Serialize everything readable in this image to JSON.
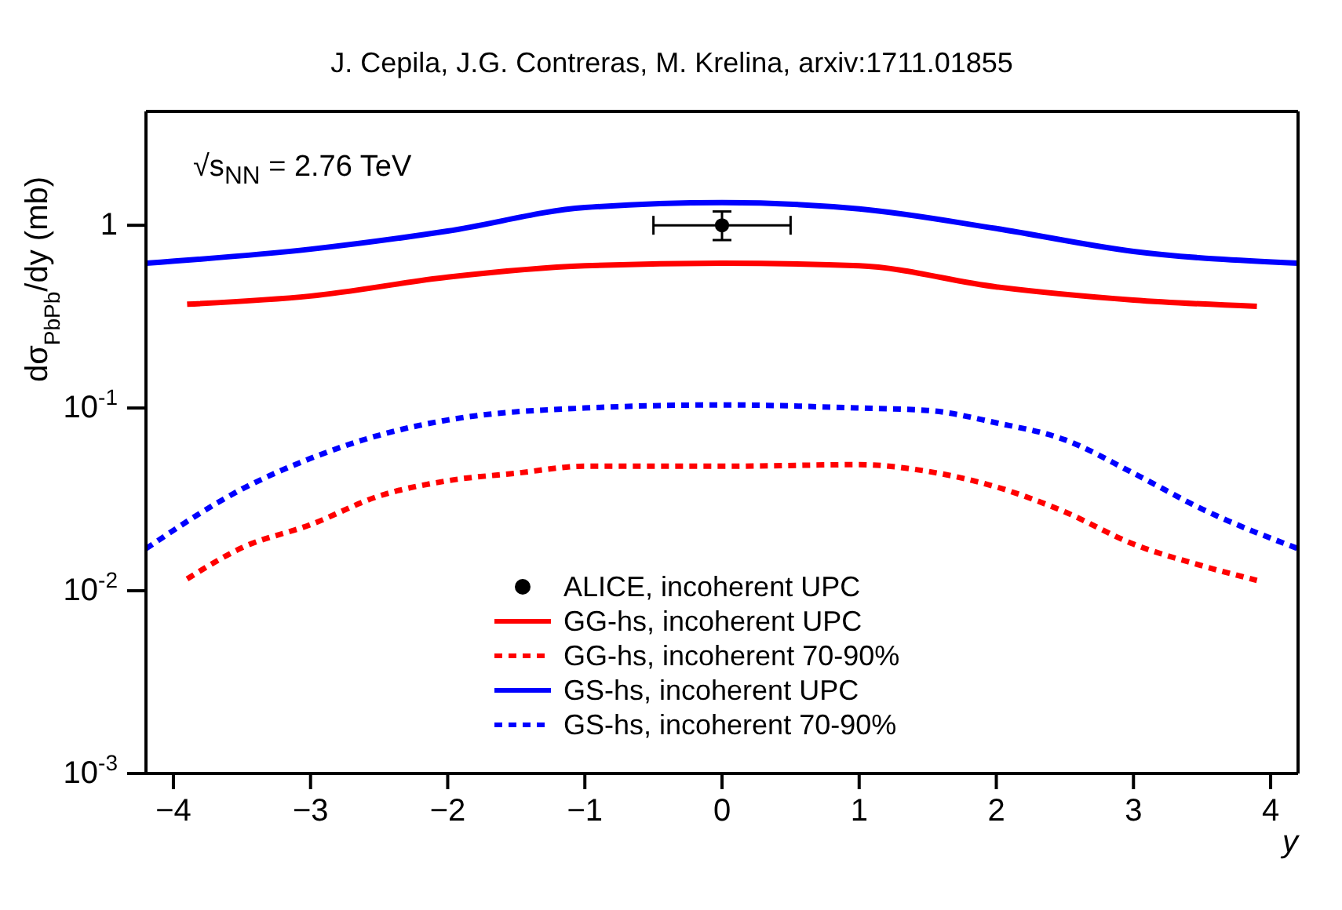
{
  "chart_data": {
    "type": "line",
    "title": "J. Cepila, J.G. Contreras, M. Krelina, arxiv:1711.01855",
    "xlabel": "y",
    "ylabel": "dσ$_{PbPb}$/dy (mb)",
    "annotations": [
      "√s$_{NN}$ = 2.76 TeV"
    ],
    "log": "y",
    "xlim": [
      -4.2,
      4.2
    ],
    "xticks": [
      -4,
      -3,
      -2,
      -1,
      0,
      1,
      2,
      3,
      4
    ],
    "ylim": [
      0.001,
      4.2
    ],
    "yticks": [
      {
        "value": 0.001,
        "label": "10$^{-3}$"
      },
      {
        "value": 0.01,
        "label": "10$^{-2}$"
      },
      {
        "value": 0.1,
        "label": "10$^{-1}$"
      },
      1
    ],
    "legend": "bottom",
    "line_style": "solid",
    "series": [
      {
        "name": "ALICE, incoherent UPC",
        "type": "scatter",
        "color": "#000000",
        "marker": "circle",
        "x": [
          0
        ],
        "values": [
          1.0
        ],
        "errors": [
          [
            0.83,
            1.19
          ]
        ],
        "xerrors": [
          0.5
        ]
      },
      {
        "name": "GG-hs, incoherent UPC",
        "color": "#ff0000",
        "x": [
          -3.9,
          -3,
          -2,
          -1,
          0,
          1,
          2,
          3,
          3.9
        ],
        "values": [
          0.37,
          0.41,
          0.52,
          0.6,
          0.62,
          0.6,
          0.46,
          0.39,
          0.36
        ]
      },
      {
        "name": "GG-hs, incoherent 70-90%",
        "color": "#ff0000",
        "line_style": "dashed",
        "x": [
          -3.9,
          -3.5,
          -3,
          -2.5,
          -2,
          -1.5,
          -1,
          0,
          1,
          1.5,
          2,
          2.5,
          3,
          3.5,
          3.9
        ],
        "values": [
          0.0116,
          0.0172,
          0.023,
          0.033,
          0.04,
          0.044,
          0.048,
          0.048,
          0.049,
          0.045,
          0.037,
          0.027,
          0.018,
          0.0137,
          0.0114
        ]
      },
      {
        "name": "GS-hs, incoherent UPC",
        "color": "#0000ff",
        "x": [
          -4.2,
          -3,
          -2,
          -1,
          0,
          1,
          2,
          3,
          4.2
        ],
        "values": [
          0.62,
          0.74,
          0.93,
          1.25,
          1.33,
          1.23,
          0.96,
          0.72,
          0.62
        ]
      },
      {
        "name": "GS-hs, incoherent 70-90%",
        "color": "#0000ff",
        "line_style": "dashed",
        "x": [
          -4.2,
          -3.5,
          -3,
          -2.5,
          -2,
          -1,
          0,
          1,
          1.5,
          2,
          2.5,
          3,
          3.5,
          4.2
        ],
        "values": [
          0.017,
          0.036,
          0.053,
          0.071,
          0.086,
          0.1,
          0.104,
          0.1,
          0.097,
          0.083,
          0.067,
          0.044,
          0.028,
          0.017
        ]
      }
    ]
  }
}
